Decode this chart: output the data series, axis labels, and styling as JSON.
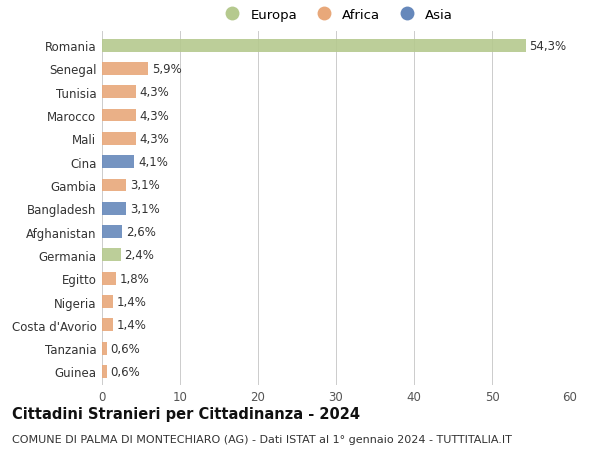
{
  "categories": [
    "Romania",
    "Senegal",
    "Tunisia",
    "Marocco",
    "Mali",
    "Cina",
    "Gambia",
    "Bangladesh",
    "Afghanistan",
    "Germania",
    "Egitto",
    "Nigeria",
    "Costa d'Avorio",
    "Tanzania",
    "Guinea"
  ],
  "values": [
    54.3,
    5.9,
    4.3,
    4.3,
    4.3,
    4.1,
    3.1,
    3.1,
    2.6,
    2.4,
    1.8,
    1.4,
    1.4,
    0.6,
    0.6
  ],
  "labels": [
    "54,3%",
    "5,9%",
    "4,3%",
    "4,3%",
    "4,3%",
    "4,1%",
    "3,1%",
    "3,1%",
    "2,6%",
    "2,4%",
    "1,8%",
    "1,4%",
    "1,4%",
    "0,6%",
    "0,6%"
  ],
  "continent": [
    "Europa",
    "Africa",
    "Africa",
    "Africa",
    "Africa",
    "Asia",
    "Africa",
    "Asia",
    "Asia",
    "Europa",
    "Africa",
    "Africa",
    "Africa",
    "Africa",
    "Africa"
  ],
  "colors": {
    "Europa": "#b5c98e",
    "Africa": "#e8a87a",
    "Asia": "#6688bb"
  },
  "xlim": [
    0,
    60
  ],
  "xticks": [
    0,
    10,
    20,
    30,
    40,
    50,
    60
  ],
  "title": "Cittadini Stranieri per Cittadinanza - 2024",
  "subtitle": "COMUNE DI PALMA DI MONTECHIARO (AG) - Dati ISTAT al 1° gennaio 2024 - TUTTITALIA.IT",
  "background_color": "#ffffff",
  "grid_color": "#cccccc",
  "bar_height": 0.55,
  "label_fontsize": 8.5,
  "title_fontsize": 10.5,
  "subtitle_fontsize": 8,
  "tick_fontsize": 8.5,
  "legend_fontsize": 9.5
}
